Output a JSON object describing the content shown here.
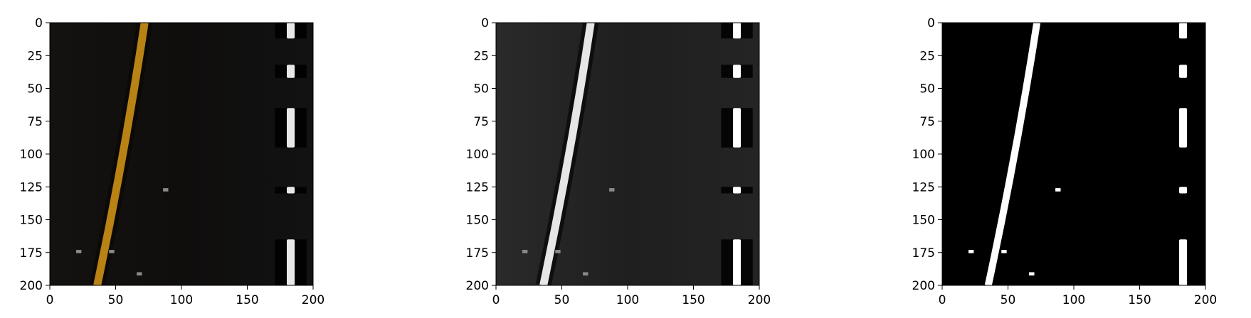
{
  "figure": {
    "panels": [
      {
        "name": "panel-color-warped",
        "style": "color"
      },
      {
        "name": "panel-gray-gradient",
        "style": "gray"
      },
      {
        "name": "panel-binary-threshold",
        "style": "binary"
      }
    ]
  },
  "chart_data": [
    {
      "type": "image",
      "xlim": [
        0,
        200
      ],
      "ylim": [
        200,
        0
      ],
      "x_ticks": [
        "0",
        "50",
        "100",
        "150",
        "200"
      ],
      "y_ticks": [
        "0",
        "25",
        "50",
        "75",
        "100",
        "125",
        "150",
        "175",
        "200"
      ],
      "grid": false,
      "lane_left": {
        "x_at_y0": 72,
        "x_at_y200": 36,
        "color": "#b98215"
      },
      "lane_right": {
        "x_center": 183,
        "dash_color": "#e8e8e8"
      }
    },
    {
      "type": "image",
      "xlim": [
        0,
        200
      ],
      "ylim": [
        200,
        0
      ],
      "x_ticks": [
        "0",
        "50",
        "100",
        "150",
        "200"
      ],
      "y_ticks": [
        "0",
        "25",
        "50",
        "75",
        "100",
        "125",
        "150",
        "175",
        "200"
      ],
      "grid": false,
      "lane_left": {
        "x_at_y0": 72,
        "x_at_y200": 36,
        "color": "#e6e6e6"
      },
      "lane_right": {
        "x_center": 183,
        "dash_color": "#ffffff"
      }
    },
    {
      "type": "image",
      "xlim": [
        0,
        200
      ],
      "ylim": [
        200,
        0
      ],
      "x_ticks": [
        "0",
        "50",
        "100",
        "150",
        "200"
      ],
      "y_ticks": [
        "0",
        "25",
        "50",
        "75",
        "100",
        "125",
        "150",
        "175",
        "200"
      ],
      "grid": false,
      "lane_left": {
        "x_at_y0": 72,
        "x_at_y200": 35,
        "color": "#ffffff"
      },
      "lane_right": {
        "x_center": 183,
        "dash_color": "#ffffff"
      }
    }
  ]
}
